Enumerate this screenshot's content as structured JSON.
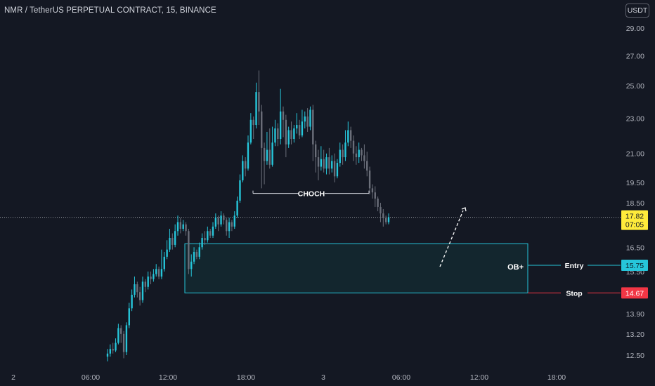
{
  "header": {
    "title": "NMR / TetherUS PERPETUAL CONTRACT, 15, BINANCE",
    "currency_button": "USDT"
  },
  "colors": {
    "background": "#141823",
    "bull": "#26c6da",
    "bear": "#6b6f7a",
    "zone_border": "#26c6da",
    "zone_fill": "#13262e",
    "stop": "#f23645",
    "last_price_badge": "#ffeb3b"
  },
  "chart_data": {
    "type": "candlestick",
    "price_axis": {
      "ticks": [
        "29.00",
        "27.00",
        "25.00",
        "23.00",
        "21.00",
        "19.50",
        "18.50",
        "16.50",
        "15.50",
        "13.90",
        "13.20",
        "12.50"
      ],
      "scale": "log",
      "range": [
        12.2,
        30.0
      ]
    },
    "time_axis": {
      "ticks": [
        "2",
        "06:00",
        "12:00",
        "18:00",
        "3",
        "06:00",
        "12:00",
        "18:00"
      ]
    },
    "last_price": {
      "value": "17.82",
      "countdown": "07:05"
    },
    "candles": [
      [
        12.45,
        12.55,
        12.3,
        12.7
      ],
      [
        12.55,
        12.7,
        12.45,
        12.85
      ],
      [
        12.7,
        12.65,
        12.55,
        12.9
      ],
      [
        12.65,
        12.9,
        12.6,
        13.05
      ],
      [
        12.9,
        13.4,
        12.85,
        13.55
      ],
      [
        13.4,
        13.2,
        12.9,
        13.5
      ],
      [
        13.2,
        12.6,
        12.4,
        13.3
      ],
      [
        12.6,
        13.5,
        12.5,
        13.6
      ],
      [
        13.5,
        14.1,
        13.4,
        14.3
      ],
      [
        14.1,
        14.6,
        14.0,
        14.8
      ],
      [
        14.6,
        15.0,
        14.5,
        15.3
      ],
      [
        15.0,
        14.7,
        14.5,
        15.1
      ],
      [
        14.7,
        14.4,
        14.2,
        14.9
      ],
      [
        14.4,
        15.1,
        14.3,
        15.3
      ],
      [
        15.1,
        14.9,
        14.7,
        15.2
      ],
      [
        14.9,
        15.3,
        14.8,
        15.5
      ],
      [
        15.3,
        15.2,
        15.0,
        15.5
      ],
      [
        15.2,
        15.4,
        15.1,
        15.6
      ],
      [
        15.4,
        15.6,
        15.3,
        15.8
      ],
      [
        15.6,
        15.3,
        15.2,
        15.7
      ],
      [
        15.3,
        15.6,
        15.2,
        16.4
      ],
      [
        15.6,
        16.1,
        15.5,
        16.3
      ],
      [
        16.1,
        16.4,
        16.0,
        16.8
      ],
      [
        16.4,
        16.9,
        16.3,
        17.3
      ],
      [
        16.9,
        16.6,
        16.4,
        17.1
      ],
      [
        16.6,
        17.2,
        16.5,
        17.5
      ],
      [
        17.2,
        17.6,
        17.0,
        17.9
      ],
      [
        17.6,
        17.3,
        17.1,
        17.8
      ],
      [
        17.3,
        17.5,
        17.2,
        17.7
      ],
      [
        17.5,
        17.2,
        17.0,
        17.6
      ],
      [
        17.2,
        15.6,
        15.4,
        17.3
      ],
      [
        15.6,
        15.9,
        15.3,
        16.2
      ],
      [
        15.9,
        16.3,
        15.8,
        16.5
      ],
      [
        16.3,
        16.1,
        16.0,
        16.4
      ],
      [
        16.1,
        16.5,
        16.0,
        16.7
      ],
      [
        16.5,
        16.9,
        16.4,
        17.1
      ],
      [
        16.9,
        16.8,
        16.6,
        17.2
      ],
      [
        16.8,
        17.2,
        16.7,
        17.4
      ],
      [
        17.2,
        17.0,
        16.9,
        17.3
      ],
      [
        17.0,
        17.4,
        16.9,
        17.6
      ],
      [
        17.4,
        17.8,
        17.3,
        18.0
      ],
      [
        17.8,
        17.5,
        17.2,
        17.9
      ],
      [
        17.5,
        17.9,
        17.4,
        18.1
      ],
      [
        17.9,
        17.7,
        17.5,
        18.0
      ],
      [
        17.7,
        17.2,
        17.0,
        17.8
      ],
      [
        17.2,
        17.6,
        16.9,
        17.8
      ],
      [
        17.6,
        17.4,
        17.2,
        17.7
      ],
      [
        17.4,
        17.9,
        17.3,
        18.1
      ],
      [
        17.9,
        18.6,
        17.8,
        18.8
      ],
      [
        18.6,
        19.6,
        18.5,
        19.9
      ],
      [
        19.6,
        20.6,
        19.5,
        20.9
      ],
      [
        20.6,
        20.2,
        19.8,
        20.8
      ],
      [
        20.2,
        21.6,
        20.1,
        22.0
      ],
      [
        21.6,
        22.9,
        21.5,
        23.3
      ],
      [
        22.9,
        22.6,
        21.8,
        23.1
      ],
      [
        22.6,
        24.6,
        22.4,
        25.2
      ],
      [
        24.6,
        23.4,
        22.6,
        26.0
      ],
      [
        23.4,
        21.3,
        19.2,
        23.8
      ],
      [
        21.3,
        20.6,
        19.4,
        21.6
      ],
      [
        20.6,
        21.2,
        20.4,
        22.2
      ],
      [
        21.2,
        20.4,
        20.2,
        22.4
      ],
      [
        20.4,
        21.6,
        20.3,
        22.5
      ],
      [
        21.6,
        22.4,
        21.4,
        22.9
      ],
      [
        22.4,
        21.8,
        21.4,
        22.7
      ],
      [
        21.8,
        23.4,
        21.5,
        24.8
      ],
      [
        23.4,
        22.9,
        21.9,
        23.7
      ],
      [
        22.9,
        21.5,
        20.8,
        23.2
      ],
      [
        21.5,
        22.3,
        21.3,
        22.5
      ],
      [
        22.3,
        21.8,
        21.5,
        22.8
      ],
      [
        21.8,
        22.4,
        21.6,
        22.6
      ],
      [
        22.4,
        22.6,
        22.1,
        23.3
      ],
      [
        22.6,
        22.0,
        21.8,
        22.9
      ],
      [
        22.0,
        22.8,
        21.9,
        23.5
      ],
      [
        22.8,
        23.1,
        22.4,
        23.4
      ],
      [
        23.1,
        22.5,
        22.2,
        23.6
      ],
      [
        22.5,
        23.5,
        22.3,
        23.7
      ],
      [
        23.5,
        21.5,
        20.6,
        23.8
      ],
      [
        21.5,
        20.8,
        20.0,
        21.7
      ],
      [
        20.8,
        20.3,
        19.6,
        21.2
      ],
      [
        20.3,
        20.7,
        20.1,
        21.4
      ],
      [
        20.7,
        20.2,
        20.0,
        21.2
      ],
      [
        20.2,
        20.8,
        19.9,
        21.0
      ],
      [
        20.8,
        20.2,
        19.9,
        21.3
      ],
      [
        20.2,
        20.6,
        20.0,
        20.9
      ],
      [
        20.6,
        19.8,
        19.5,
        21.0
      ],
      [
        19.8,
        20.5,
        19.7,
        20.7
      ],
      [
        20.5,
        21.2,
        20.3,
        21.6
      ],
      [
        21.2,
        20.8,
        20.4,
        21.5
      ],
      [
        20.8,
        21.6,
        20.6,
        22.3
      ],
      [
        21.6,
        22.3,
        21.4,
        22.8
      ],
      [
        22.3,
        21.7,
        21.3,
        22.5
      ],
      [
        21.7,
        21.0,
        20.6,
        22.0
      ],
      [
        21.0,
        20.8,
        20.4,
        21.4
      ],
      [
        20.8,
        21.2,
        20.5,
        21.6
      ],
      [
        21.2,
        20.9,
        20.6,
        21.3
      ],
      [
        20.9,
        20.6,
        20.2,
        21.5
      ],
      [
        20.6,
        20.1,
        19.8,
        21.1
      ],
      [
        20.1,
        19.2,
        18.9,
        20.3
      ],
      [
        19.2,
        19.0,
        18.7,
        19.4
      ],
      [
        19.0,
        18.7,
        18.3,
        19.3
      ],
      [
        18.7,
        18.3,
        18.1,
        18.8
      ],
      [
        18.3,
        18.0,
        17.6,
        18.5
      ],
      [
        18.0,
        17.8,
        17.4,
        18.2
      ],
      [
        17.8,
        17.6,
        17.5,
        17.9
      ],
      [
        17.6,
        17.82,
        17.5,
        18.0
      ]
    ],
    "annotations": {
      "choch": {
        "label": "CHOCH",
        "price": 18.95
      },
      "order_block": {
        "label": "OB+",
        "top": 16.65,
        "bottom": 14.67
      },
      "entry": {
        "label": "Entry",
        "price": "15.75"
      },
      "stop": {
        "label": "Stop",
        "price": "14.67"
      }
    }
  }
}
